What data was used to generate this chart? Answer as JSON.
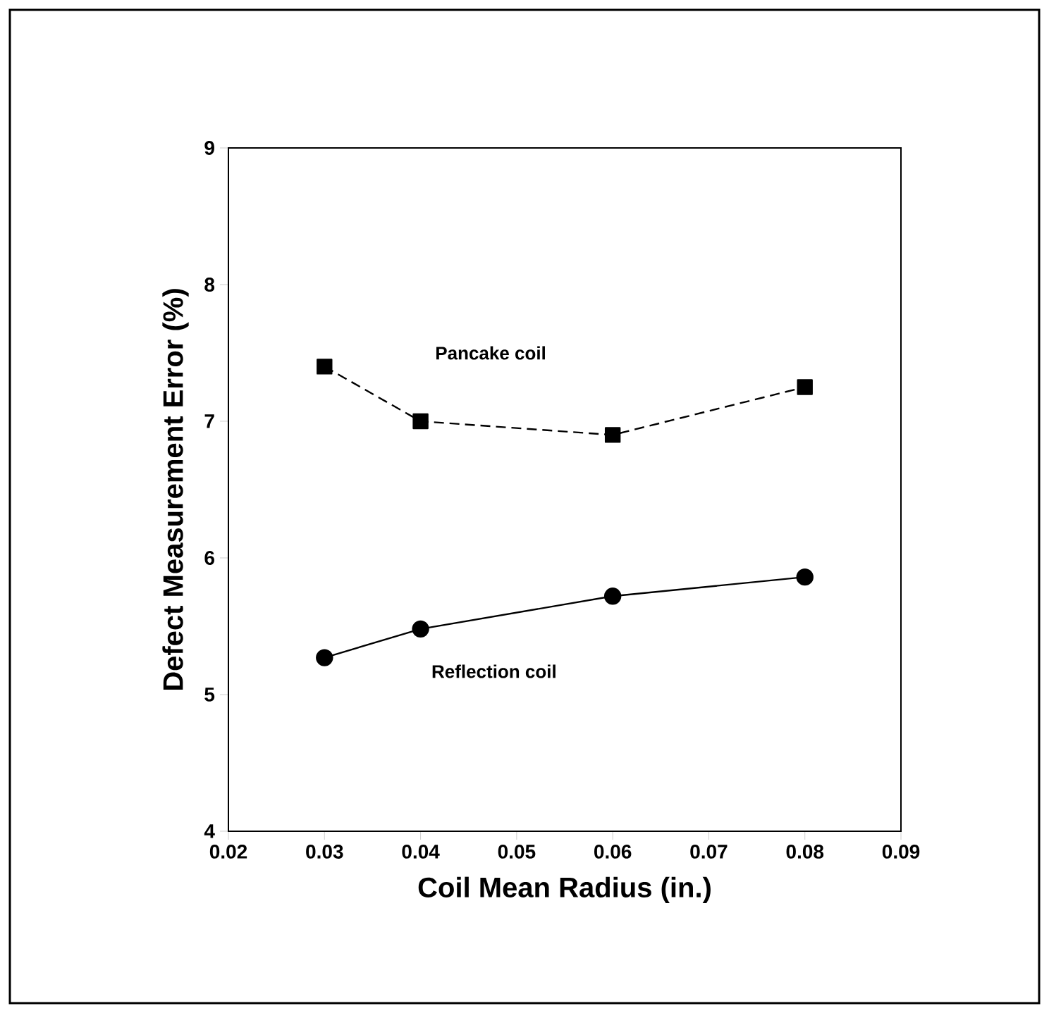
{
  "chart_data": {
    "type": "line",
    "xlabel": "Coil Mean Radius (in.)",
    "ylabel": "Defect Measurement Error (%)",
    "x": [
      0.03,
      0.04,
      0.06,
      0.08
    ],
    "series": [
      {
        "color": "#000000",
        "values": [
          7.4,
          7.0,
          6.9,
          7.25
        ],
        "marker": "square",
        "line_style": "dashed"
      },
      {
        "color": "#000000",
        "values": [
          5.27,
          5.48,
          5.72,
          5.86
        ],
        "marker": "circle",
        "line_style": "solid"
      }
    ],
    "xlim": [
      0.02,
      0.09
    ],
    "xticks": [
      0.02,
      0.03,
      0.04,
      0.05,
      0.06,
      0.07,
      0.08,
      0.09
    ],
    "ylim": [
      4,
      9
    ],
    "yticks": [
      4,
      5,
      6,
      7,
      8,
      9
    ],
    "annotations": [
      "Pancake coil",
      "Reflection coil"
    ],
    "grid": false
  }
}
